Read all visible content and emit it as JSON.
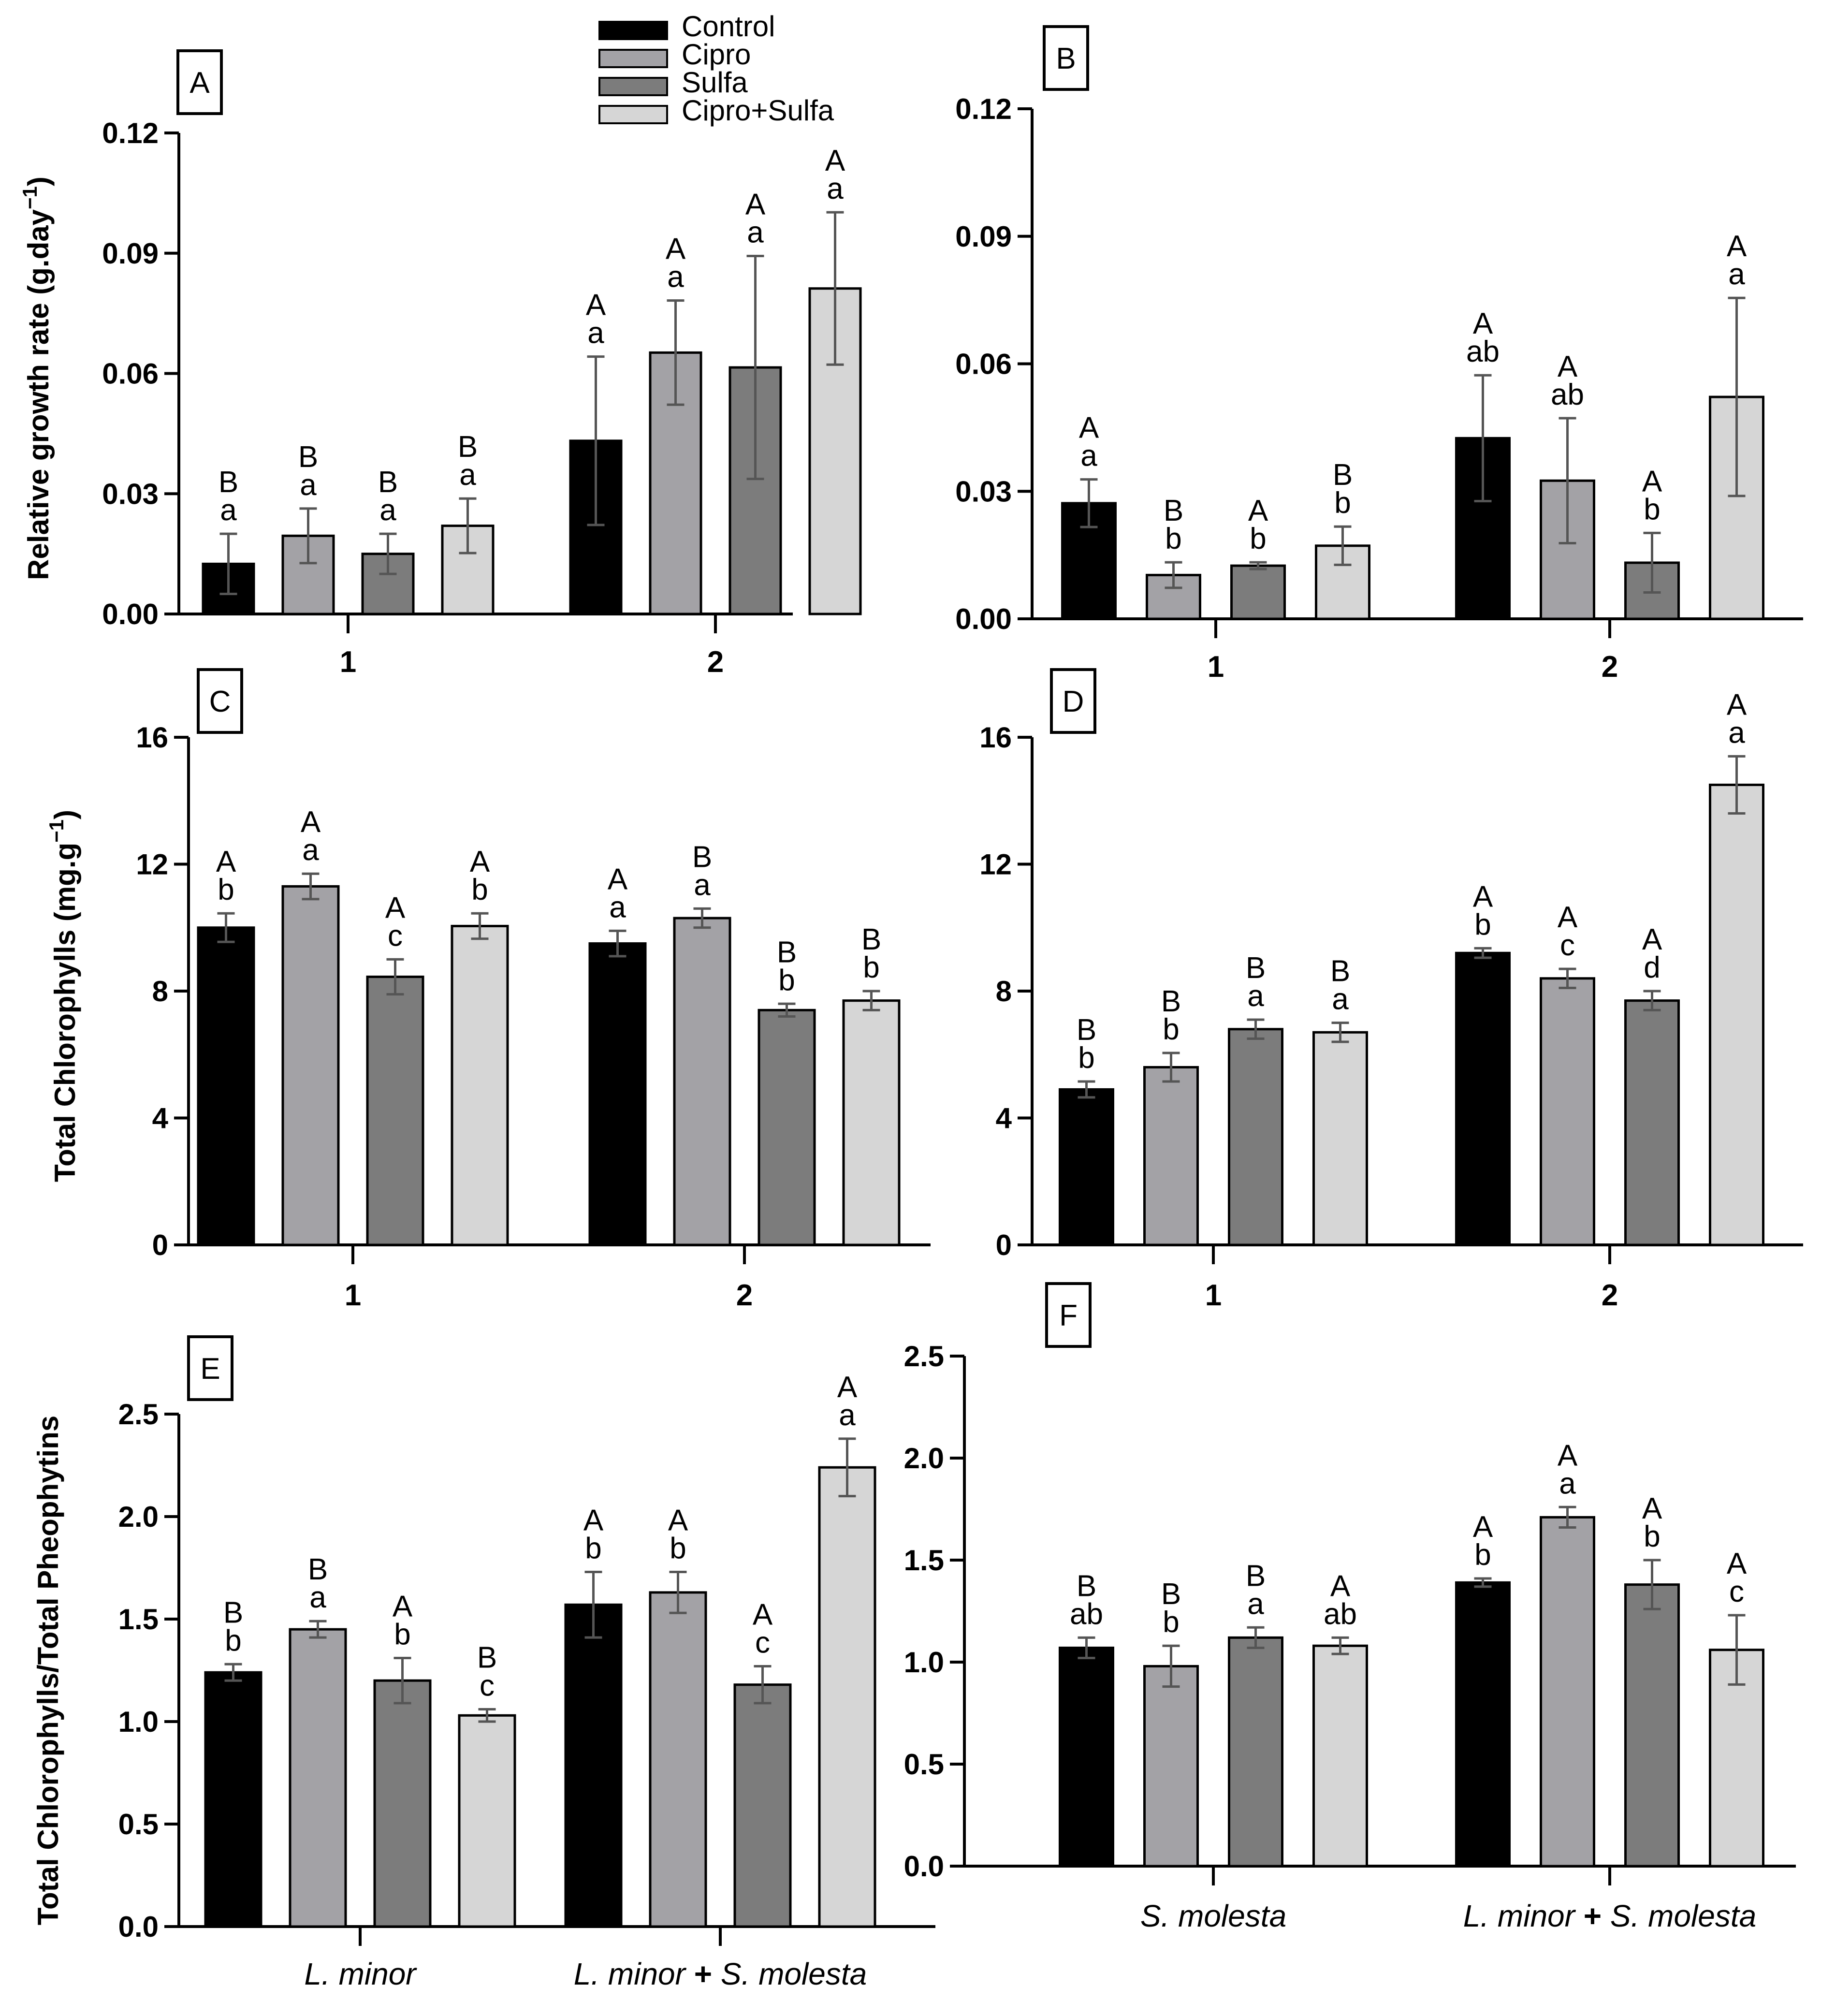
{
  "colors": {
    "Control": "#000000",
    "Cipro": "#a3a2a6",
    "Sulfa": "#7c7c7c",
    "Cipro+Sulfa": "#d6d6d6",
    "errorbar": "#555555"
  },
  "legend": {
    "entries": [
      "Control",
      "Cipro",
      "Sulfa",
      "Cipro+Sulfa"
    ]
  },
  "chart_data": [
    {
      "panel": "A",
      "type": "bar",
      "ylabel_main": "Relative growth rate (g.day",
      "ylabel_sup": "−1",
      "ylabel_end": ")",
      "ylim": [
        0,
        0.12
      ],
      "yticks": [
        "0.00",
        "0.03",
        "0.06",
        "0.09",
        "0.12"
      ],
      "categories": [
        "1",
        "2"
      ],
      "series": [
        {
          "name": "Control",
          "values": [
            0.0125,
            0.0432
          ],
          "errors": [
            0.0075,
            0.021
          ],
          "upper": [
            "B",
            "A"
          ],
          "lower": [
            "a",
            "a"
          ]
        },
        {
          "name": "Cipro",
          "values": [
            0.0195,
            0.0652
          ],
          "errors": [
            0.0068,
            0.013
          ],
          "upper": [
            "B",
            "A"
          ],
          "lower": [
            "a",
            "a"
          ]
        },
        {
          "name": "Sulfa",
          "values": [
            0.015,
            0.0615
          ],
          "errors": [
            0.005,
            0.0278
          ],
          "upper": [
            "B",
            "A"
          ],
          "lower": [
            "a",
            "a"
          ]
        },
        {
          "name": "Cipro+Sulfa",
          "values": [
            0.022,
            0.0812
          ],
          "errors": [
            0.0068,
            0.019
          ],
          "upper": [
            "B",
            "A"
          ],
          "lower": [
            "a",
            "a"
          ]
        }
      ]
    },
    {
      "panel": "B",
      "type": "bar",
      "ylim": [
        0,
        0.12
      ],
      "yticks": [
        "0.00",
        "0.03",
        "0.06",
        "0.09",
        "0.12"
      ],
      "categories": [
        "1",
        "2"
      ],
      "series": [
        {
          "name": "Control",
          "values": [
            0.0272,
            0.0425
          ],
          "errors": [
            0.0056,
            0.0148
          ],
          "upper": [
            "A",
            "A"
          ],
          "lower": [
            "a",
            "ab"
          ]
        },
        {
          "name": "Cipro",
          "values": [
            0.0103,
            0.0325
          ],
          "errors": [
            0.003,
            0.0147
          ],
          "upper": [
            "B",
            "A"
          ],
          "lower": [
            "b",
            "ab"
          ]
        },
        {
          "name": "Sulfa",
          "values": [
            0.0125,
            0.0132
          ],
          "errors": [
            0.0008,
            0.007
          ],
          "upper": [
            "A",
            "A"
          ],
          "lower": [
            "b",
            "b"
          ]
        },
        {
          "name": "Cipro+Sulfa",
          "values": [
            0.0172,
            0.0522
          ],
          "errors": [
            0.0045,
            0.0233
          ],
          "upper": [
            "B",
            "A"
          ],
          "lower": [
            "b",
            "a"
          ]
        }
      ]
    },
    {
      "panel": "C",
      "type": "bar",
      "ylabel_main": "Total Chlorophylls (mg.g",
      "ylabel_sup": "−1",
      "ylabel_end": ")",
      "ylim": [
        0,
        16
      ],
      "yticks": [
        "0",
        "4",
        "8",
        "12",
        "16"
      ],
      "categories": [
        "1",
        "2"
      ],
      "series": [
        {
          "name": "Control",
          "values": [
            10.0,
            9.5
          ],
          "errors": [
            0.45,
            0.4
          ],
          "upper": [
            "A",
            "A"
          ],
          "lower": [
            "b",
            "a"
          ]
        },
        {
          "name": "Cipro",
          "values": [
            11.3,
            10.3
          ],
          "errors": [
            0.4,
            0.3
          ],
          "upper": [
            "A",
            "B"
          ],
          "lower": [
            "a",
            "a"
          ]
        },
        {
          "name": "Sulfa",
          "values": [
            8.45,
            7.4
          ],
          "errors": [
            0.55,
            0.2
          ],
          "upper": [
            "A",
            "B"
          ],
          "lower": [
            "c",
            "b"
          ]
        },
        {
          "name": "Cipro+Sulfa",
          "values": [
            10.05,
            7.7
          ],
          "errors": [
            0.4,
            0.3
          ],
          "upper": [
            "A",
            "B"
          ],
          "lower": [
            "b",
            "b"
          ]
        }
      ]
    },
    {
      "panel": "D",
      "type": "bar",
      "ylim": [
        0,
        16
      ],
      "yticks": [
        "0",
        "4",
        "8",
        "12",
        "16"
      ],
      "categories": [
        "1",
        "2"
      ],
      "series": [
        {
          "name": "Control",
          "values": [
            4.9,
            9.2
          ],
          "errors": [
            0.25,
            0.15
          ],
          "upper": [
            "B",
            "A"
          ],
          "lower": [
            "b",
            "b"
          ]
        },
        {
          "name": "Cipro",
          "values": [
            5.6,
            8.4
          ],
          "errors": [
            0.45,
            0.3
          ],
          "upper": [
            "B",
            "A"
          ],
          "lower": [
            "b",
            "c"
          ]
        },
        {
          "name": "Sulfa",
          "values": [
            6.8,
            7.7
          ],
          "errors": [
            0.3,
            0.3
          ],
          "upper": [
            "B",
            "A"
          ],
          "lower": [
            "a",
            "d"
          ]
        },
        {
          "name": "Cipro+Sulfa",
          "values": [
            6.7,
            14.5
          ],
          "errors": [
            0.3,
            0.9
          ],
          "upper": [
            "B",
            "A"
          ],
          "lower": [
            "a",
            "a"
          ]
        }
      ]
    },
    {
      "panel": "E",
      "type": "bar",
      "ylabel_main": "Total Chlorophylls/Total Pheophytins",
      "ylim": [
        0,
        2.5
      ],
      "yticks": [
        "0.0",
        "0.5",
        "1.0",
        "1.5",
        "2.0",
        "2.5"
      ],
      "categories": [
        "L. minor",
        "L. minor + S. molesta"
      ],
      "series": [
        {
          "name": "Control",
          "values": [
            1.24,
            1.57
          ],
          "errors": [
            0.04,
            0.16
          ],
          "upper": [
            "B",
            "A"
          ],
          "lower": [
            "b",
            "b"
          ]
        },
        {
          "name": "Cipro",
          "values": [
            1.45,
            1.63
          ],
          "errors": [
            0.04,
            0.1
          ],
          "upper": [
            "B",
            "A"
          ],
          "lower": [
            "a",
            "b"
          ]
        },
        {
          "name": "Sulfa",
          "values": [
            1.2,
            1.18
          ],
          "errors": [
            0.11,
            0.09
          ],
          "upper": [
            "A",
            "A"
          ],
          "lower": [
            "b",
            "c"
          ]
        },
        {
          "name": "Cipro+Sulfa",
          "values": [
            1.03,
            2.24
          ],
          "errors": [
            0.03,
            0.14
          ],
          "upper": [
            "B",
            "A"
          ],
          "lower": [
            "c",
            "a"
          ]
        }
      ]
    },
    {
      "panel": "F",
      "type": "bar",
      "ylim": [
        0,
        2.5
      ],
      "yticks": [
        "0.0",
        "0.5",
        "1.0",
        "1.5",
        "2.0",
        "2.5"
      ],
      "categories": [
        "S. molesta",
        "L. minor + S. molesta"
      ],
      "series": [
        {
          "name": "Control",
          "values": [
            1.07,
            1.39
          ],
          "errors": [
            0.05,
            0.02
          ],
          "upper": [
            "B",
            "A"
          ],
          "lower": [
            "ab",
            "b"
          ]
        },
        {
          "name": "Cipro",
          "values": [
            0.98,
            1.71
          ],
          "errors": [
            0.1,
            0.05
          ],
          "upper": [
            "B",
            "A"
          ],
          "lower": [
            "b",
            "a"
          ]
        },
        {
          "name": "Sulfa",
          "values": [
            1.12,
            1.38
          ],
          "errors": [
            0.05,
            0.12
          ],
          "upper": [
            "B",
            "A"
          ],
          "lower": [
            "a",
            "b"
          ]
        },
        {
          "name": "Cipro+Sulfa",
          "values": [
            1.08,
            1.06
          ],
          "errors": [
            0.04,
            0.17
          ],
          "upper": [
            "A",
            "A"
          ],
          "lower": [
            "ab",
            "c"
          ]
        }
      ]
    }
  ]
}
